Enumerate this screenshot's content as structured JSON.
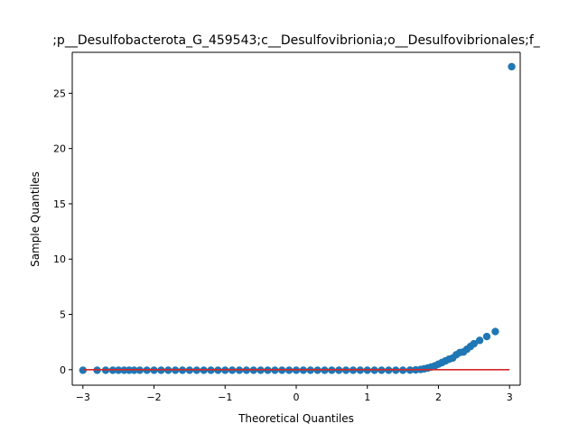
{
  "chart_data": {
    "type": "scatter",
    "title": ";p__Desulfobacterota_G_459543;c__Desulfovibrionia;o__Desulfovibrionales;f_",
    "xlabel": "Theoretical Quantiles",
    "ylabel": "Sample Quantiles",
    "xlim": [
      -3.15,
      3.15
    ],
    "ylim": [
      -1.4,
      28.7
    ],
    "xticks": [
      -3,
      -2,
      -1,
      0,
      1,
      2,
      3
    ],
    "yticks": [
      0,
      5,
      10,
      15,
      20,
      25
    ],
    "grid": false,
    "legend": "none",
    "colors": {
      "points": "#1f77b4",
      "reference_line": "#d62728"
    },
    "reference_line": {
      "x": [
        -3.0,
        3.0
      ],
      "y": [
        0,
        0
      ]
    },
    "series": [
      {
        "values": [
          [
            -3.0,
            -0.05
          ],
          [
            -2.8,
            -0.05
          ],
          [
            -2.68,
            -0.05
          ],
          [
            -2.58,
            -0.05
          ],
          [
            -2.5,
            -0.05
          ],
          [
            -2.42,
            -0.05
          ],
          [
            -2.35,
            -0.05
          ],
          [
            -2.28,
            -0.05
          ],
          [
            -2.2,
            -0.05
          ],
          [
            -2.1,
            -0.05
          ],
          [
            -2.0,
            -0.05
          ],
          [
            -1.9,
            -0.05
          ],
          [
            -1.8,
            -0.05
          ],
          [
            -1.7,
            -0.05
          ],
          [
            -1.6,
            -0.05
          ],
          [
            -1.5,
            -0.05
          ],
          [
            -1.4,
            -0.05
          ],
          [
            -1.3,
            -0.05
          ],
          [
            -1.2,
            -0.05
          ],
          [
            -1.1,
            -0.05
          ],
          [
            -1.0,
            -0.05
          ],
          [
            -0.9,
            -0.05
          ],
          [
            -0.8,
            -0.05
          ],
          [
            -0.7,
            -0.05
          ],
          [
            -0.6,
            -0.05
          ],
          [
            -0.5,
            -0.05
          ],
          [
            -0.4,
            -0.05
          ],
          [
            -0.3,
            -0.05
          ],
          [
            -0.2,
            -0.05
          ],
          [
            -0.1,
            -0.05
          ],
          [
            0.0,
            -0.05
          ],
          [
            0.1,
            -0.05
          ],
          [
            0.2,
            -0.05
          ],
          [
            0.3,
            -0.05
          ],
          [
            0.4,
            -0.05
          ],
          [
            0.5,
            -0.05
          ],
          [
            0.6,
            -0.05
          ],
          [
            0.7,
            -0.05
          ],
          [
            0.8,
            -0.05
          ],
          [
            0.9,
            -0.05
          ],
          [
            1.0,
            -0.05
          ],
          [
            1.1,
            -0.05
          ],
          [
            1.2,
            -0.05
          ],
          [
            1.3,
            -0.05
          ],
          [
            1.4,
            -0.05
          ],
          [
            1.5,
            -0.05
          ],
          [
            1.6,
            -0.04
          ],
          [
            1.68,
            -0.02
          ],
          [
            1.75,
            0.02
          ],
          [
            1.8,
            0.08
          ],
          [
            1.85,
            0.15
          ],
          [
            1.9,
            0.25
          ],
          [
            1.95,
            0.35
          ],
          [
            2.0,
            0.5
          ],
          [
            2.05,
            0.65
          ],
          [
            2.1,
            0.8
          ],
          [
            2.15,
            0.95
          ],
          [
            2.2,
            1.05
          ],
          [
            2.25,
            1.35
          ],
          [
            2.3,
            1.55
          ],
          [
            2.35,
            1.6
          ],
          [
            2.4,
            1.85
          ],
          [
            2.45,
            2.1
          ],
          [
            2.5,
            2.35
          ],
          [
            2.58,
            2.65
          ],
          [
            2.68,
            3.0
          ],
          [
            2.8,
            3.45
          ],
          [
            3.03,
            27.4
          ]
        ]
      }
    ]
  }
}
